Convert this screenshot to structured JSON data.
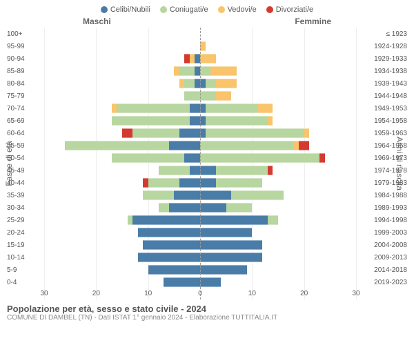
{
  "legend": [
    {
      "label": "Celibi/Nubili",
      "color": "#4a7ca8"
    },
    {
      "label": "Coniugati/e",
      "color": "#b7d6a0"
    },
    {
      "label": "Vedovi/e",
      "color": "#f9c46b"
    },
    {
      "label": "Divorziati/e",
      "color": "#d43a2f"
    }
  ],
  "side_labels": {
    "male": "Maschi",
    "female": "Femmine"
  },
  "y_titles": {
    "left": "Fasce di età",
    "right": "Anni di nascita"
  },
  "x_axis": {
    "ticks": [
      30,
      20,
      10,
      0,
      10,
      20,
      30
    ],
    "max": 30
  },
  "colors": {
    "grid": "#eeeeee",
    "dash": "#999999",
    "text": "#555555"
  },
  "rows": [
    {
      "age": "100+",
      "birth": "≤ 1923",
      "m": {
        "c": 0,
        "co": 0,
        "v": 0,
        "d": 0
      },
      "f": {
        "c": 0,
        "co": 0,
        "v": 0,
        "d": 0
      }
    },
    {
      "age": "95-99",
      "birth": "1924-1928",
      "m": {
        "c": 0,
        "co": 0,
        "v": 0,
        "d": 0
      },
      "f": {
        "c": 0,
        "co": 0,
        "v": 1,
        "d": 0
      }
    },
    {
      "age": "90-94",
      "birth": "1929-1933",
      "m": {
        "c": 1,
        "co": 0,
        "v": 1,
        "d": 1
      },
      "f": {
        "c": 0,
        "co": 0,
        "v": 3,
        "d": 0
      }
    },
    {
      "age": "85-89",
      "birth": "1934-1938",
      "m": {
        "c": 1,
        "co": 3,
        "v": 1,
        "d": 0
      },
      "f": {
        "c": 0,
        "co": 2,
        "v": 5,
        "d": 0
      }
    },
    {
      "age": "80-84",
      "birth": "1939-1943",
      "m": {
        "c": 1,
        "co": 2,
        "v": 1,
        "d": 0
      },
      "f": {
        "c": 1,
        "co": 2,
        "v": 4,
        "d": 0
      }
    },
    {
      "age": "75-79",
      "birth": "1944-1948",
      "m": {
        "c": 0,
        "co": 3,
        "v": 0,
        "d": 0
      },
      "f": {
        "c": 0,
        "co": 3,
        "v": 3,
        "d": 0
      }
    },
    {
      "age": "70-74",
      "birth": "1949-1953",
      "m": {
        "c": 2,
        "co": 14,
        "v": 1,
        "d": 0
      },
      "f": {
        "c": 1,
        "co": 10,
        "v": 3,
        "d": 0
      }
    },
    {
      "age": "65-69",
      "birth": "1954-1958",
      "m": {
        "c": 2,
        "co": 15,
        "v": 0,
        "d": 0
      },
      "f": {
        "c": 1,
        "co": 12,
        "v": 1,
        "d": 0
      }
    },
    {
      "age": "60-64",
      "birth": "1959-1963",
      "m": {
        "c": 4,
        "co": 9,
        "v": 0,
        "d": 2
      },
      "f": {
        "c": 1,
        "co": 19,
        "v": 1,
        "d": 0
      }
    },
    {
      "age": "55-59",
      "birth": "1964-1968",
      "m": {
        "c": 6,
        "co": 20,
        "v": 0,
        "d": 0
      },
      "f": {
        "c": 0,
        "co": 18,
        "v": 1,
        "d": 2
      }
    },
    {
      "age": "50-54",
      "birth": "1969-1973",
      "m": {
        "c": 3,
        "co": 14,
        "v": 0,
        "d": 0
      },
      "f": {
        "c": 0,
        "co": 23,
        "v": 0,
        "d": 1
      }
    },
    {
      "age": "45-49",
      "birth": "1974-1978",
      "m": {
        "c": 2,
        "co": 6,
        "v": 0,
        "d": 0
      },
      "f": {
        "c": 3,
        "co": 10,
        "v": 0,
        "d": 1
      }
    },
    {
      "age": "40-44",
      "birth": "1979-1983",
      "m": {
        "c": 4,
        "co": 6,
        "v": 0,
        "d": 1
      },
      "f": {
        "c": 3,
        "co": 9,
        "v": 0,
        "d": 0
      }
    },
    {
      "age": "35-39",
      "birth": "1984-1988",
      "m": {
        "c": 5,
        "co": 6,
        "v": 0,
        "d": 0
      },
      "f": {
        "c": 6,
        "co": 10,
        "v": 0,
        "d": 0
      }
    },
    {
      "age": "30-34",
      "birth": "1989-1993",
      "m": {
        "c": 6,
        "co": 2,
        "v": 0,
        "d": 0
      },
      "f": {
        "c": 5,
        "co": 5,
        "v": 0,
        "d": 0
      }
    },
    {
      "age": "25-29",
      "birth": "1994-1998",
      "m": {
        "c": 13,
        "co": 1,
        "v": 0,
        "d": 0
      },
      "f": {
        "c": 13,
        "co": 2,
        "v": 0,
        "d": 0
      }
    },
    {
      "age": "20-24",
      "birth": "1999-2003",
      "m": {
        "c": 12,
        "co": 0,
        "v": 0,
        "d": 0
      },
      "f": {
        "c": 10,
        "co": 0,
        "v": 0,
        "d": 0
      }
    },
    {
      "age": "15-19",
      "birth": "2004-2008",
      "m": {
        "c": 11,
        "co": 0,
        "v": 0,
        "d": 0
      },
      "f": {
        "c": 12,
        "co": 0,
        "v": 0,
        "d": 0
      }
    },
    {
      "age": "10-14",
      "birth": "2009-2013",
      "m": {
        "c": 12,
        "co": 0,
        "v": 0,
        "d": 0
      },
      "f": {
        "c": 12,
        "co": 0,
        "v": 0,
        "d": 0
      }
    },
    {
      "age": "5-9",
      "birth": "2014-2018",
      "m": {
        "c": 10,
        "co": 0,
        "v": 0,
        "d": 0
      },
      "f": {
        "c": 9,
        "co": 0,
        "v": 0,
        "d": 0
      }
    },
    {
      "age": "0-4",
      "birth": "2019-2023",
      "m": {
        "c": 7,
        "co": 0,
        "v": 0,
        "d": 0
      },
      "f": {
        "c": 4,
        "co": 0,
        "v": 0,
        "d": 0
      }
    }
  ],
  "footer": {
    "title": "Popolazione per età, sesso e stato civile - 2024",
    "subtitle": "COMUNE DI DAMBEL (TN) - Dati ISTAT 1° gennaio 2024 - Elaborazione TUTTITALIA.IT"
  }
}
